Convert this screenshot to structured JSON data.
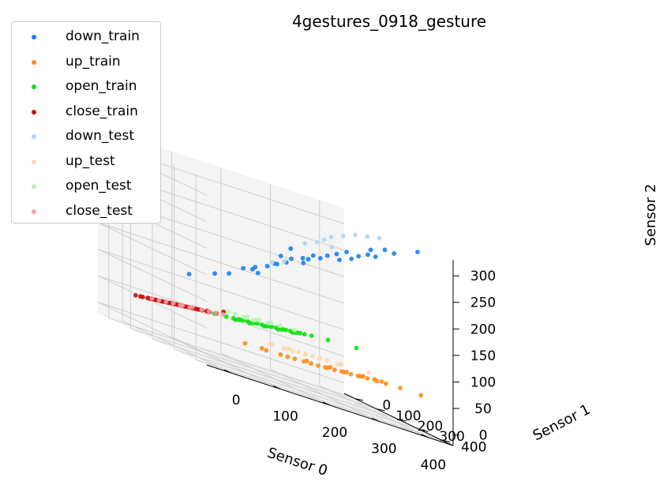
{
  "chart_data": {
    "type": "scatter3d",
    "title": "4gestures_0918_gesture",
    "xlabel": "Sensor 0",
    "ylabel": "Sensor 1",
    "zlabel": "Sensor 2",
    "xlim": [
      -50,
      450
    ],
    "ylim": [
      -50,
      450
    ],
    "zlim": [
      -20,
      330
    ],
    "xticks": [
      0,
      100,
      200,
      300,
      400
    ],
    "yticks": [
      0,
      100,
      200,
      300,
      400
    ],
    "zticks": [
      0,
      50,
      100,
      150,
      200,
      250,
      300
    ],
    "grid": true,
    "legend_position": "outside-top-left",
    "series": [
      {
        "name": "down_train",
        "color": "#1a80f0",
        "points": [
          [
            60,
            120,
            120
          ],
          [
            90,
            170,
            140
          ],
          [
            110,
            190,
            150
          ],
          [
            130,
            210,
            170
          ],
          [
            150,
            220,
            180
          ],
          [
            170,
            230,
            190
          ],
          [
            180,
            240,
            200
          ],
          [
            200,
            250,
            210
          ],
          [
            210,
            250,
            220
          ],
          [
            230,
            260,
            220
          ],
          [
            240,
            260,
            230
          ],
          [
            260,
            270,
            240
          ],
          [
            270,
            280,
            250
          ],
          [
            290,
            290,
            250
          ],
          [
            300,
            300,
            270
          ],
          [
            310,
            300,
            260
          ],
          [
            320,
            310,
            270
          ],
          [
            330,
            330,
            280
          ],
          [
            340,
            320,
            290
          ],
          [
            360,
            340,
            300
          ],
          [
            370,
            360,
            300
          ],
          [
            400,
            400,
            320
          ],
          [
            250,
            260,
            240
          ],
          [
            220,
            280,
            230
          ],
          [
            190,
            230,
            200
          ],
          [
            280,
            300,
            260
          ],
          [
            160,
            210,
            170
          ],
          [
            140,
            230,
            175
          ],
          [
            350,
            320,
            280
          ],
          [
            200,
            270,
            240
          ],
          [
            180,
            270,
            220
          ]
        ]
      },
      {
        "name": "up_train",
        "color": "#ff8c1a",
        "points": [
          [
            200,
            60,
            20
          ],
          [
            230,
            90,
            22
          ],
          [
            250,
            110,
            24
          ],
          [
            270,
            130,
            26
          ],
          [
            280,
            150,
            28
          ],
          [
            300,
            170,
            30
          ],
          [
            310,
            180,
            32
          ],
          [
            320,
            200,
            34
          ],
          [
            330,
            210,
            36
          ],
          [
            340,
            230,
            38
          ],
          [
            350,
            240,
            40
          ],
          [
            360,
            260,
            42
          ],
          [
            370,
            280,
            44
          ],
          [
            380,
            300,
            46
          ],
          [
            400,
            320,
            48
          ],
          [
            260,
            120,
            25
          ],
          [
            290,
            160,
            29
          ],
          [
            310,
            190,
            33
          ],
          [
            330,
            220,
            37
          ],
          [
            350,
            250,
            41
          ],
          [
            370,
            270,
            45
          ],
          [
            290,
            140,
            30
          ],
          [
            320,
            180,
            35
          ],
          [
            340,
            210,
            38
          ],
          [
            360,
            240,
            42
          ],
          [
            380,
            280,
            46
          ],
          [
            420,
            370,
            50
          ],
          [
            230,
            70,
            22
          ]
        ]
      },
      {
        "name": "open_train",
        "color": "#10e010",
        "points": [
          [
            120,
            100,
            60
          ],
          [
            140,
            110,
            62
          ],
          [
            150,
            120,
            64
          ],
          [
            160,
            130,
            66
          ],
          [
            170,
            140,
            68
          ],
          [
            180,
            150,
            70
          ],
          [
            190,
            160,
            72
          ],
          [
            200,
            170,
            74
          ],
          [
            210,
            180,
            76
          ],
          [
            220,
            190,
            78
          ],
          [
            230,
            200,
            80
          ],
          [
            240,
            210,
            82
          ],
          [
            250,
            220,
            84
          ],
          [
            260,
            230,
            86
          ],
          [
            280,
            260,
            90
          ],
          [
            160,
            120,
            65
          ],
          [
            180,
            140,
            68
          ],
          [
            200,
            160,
            72
          ],
          [
            220,
            180,
            76
          ],
          [
            240,
            200,
            80
          ],
          [
            150,
            130,
            63
          ],
          [
            170,
            150,
            67
          ],
          [
            190,
            170,
            71
          ],
          [
            210,
            190,
            75
          ],
          [
            230,
            210,
            79
          ],
          [
            170,
            120,
            66
          ],
          [
            190,
            140,
            70
          ],
          [
            210,
            160,
            74
          ],
          [
            230,
            180,
            78
          ],
          [
            250,
            200,
            82
          ],
          [
            320,
            300,
            95
          ]
        ]
      },
      {
        "name": "close_train",
        "color": "#c81010",
        "points": [
          [
            0,
            10,
            40
          ],
          [
            10,
            20,
            42
          ],
          [
            20,
            30,
            44
          ],
          [
            30,
            40,
            46
          ],
          [
            40,
            50,
            48
          ],
          [
            50,
            60,
            50
          ],
          [
            60,
            70,
            52
          ],
          [
            70,
            80,
            54
          ],
          [
            80,
            90,
            56
          ],
          [
            90,
            100,
            58
          ],
          [
            100,
            110,
            60
          ],
          [
            20,
            20,
            43
          ],
          [
            40,
            40,
            47
          ],
          [
            60,
            60,
            51
          ],
          [
            80,
            80,
            55
          ],
          [
            30,
            20,
            44
          ],
          [
            50,
            40,
            48
          ],
          [
            70,
            60,
            52
          ],
          [
            90,
            80,
            56
          ],
          [
            110,
            100,
            60
          ],
          [
            10,
            10,
            41
          ],
          [
            30,
            30,
            45
          ],
          [
            50,
            50,
            49
          ],
          [
            70,
            70,
            53
          ],
          [
            90,
            90,
            57
          ],
          [
            60,
            50,
            50
          ],
          [
            80,
            70,
            54
          ],
          [
            100,
            90,
            58
          ],
          [
            120,
            110,
            62
          ],
          [
            40,
            30,
            46
          ],
          [
            130,
            120,
            70
          ],
          [
            110,
            90,
            60
          ]
        ]
      },
      {
        "name": "down_test",
        "color": "#b3d5f7",
        "points": [
          [
            280,
            330,
            300
          ],
          [
            300,
            340,
            310
          ],
          [
            320,
            350,
            315
          ],
          [
            260,
            320,
            290
          ],
          [
            340,
            360,
            320
          ],
          [
            240,
            300,
            270
          ],
          [
            220,
            290,
            260
          ],
          [
            250,
            310,
            280
          ],
          [
            200,
            240,
            210
          ],
          [
            180,
            230,
            200
          ],
          [
            270,
            300,
            270
          ]
        ]
      },
      {
        "name": "up_test",
        "color": "#fed9b0",
        "points": [
          [
            220,
            140,
            40
          ],
          [
            240,
            160,
            42
          ],
          [
            260,
            170,
            44
          ],
          [
            280,
            190,
            46
          ],
          [
            300,
            210,
            48
          ],
          [
            320,
            230,
            50
          ],
          [
            250,
            150,
            43
          ],
          [
            270,
            180,
            45
          ],
          [
            290,
            200,
            47
          ],
          [
            230,
            170,
            41
          ],
          [
            210,
            150,
            39
          ],
          [
            310,
            250,
            52
          ],
          [
            260,
            200,
            45
          ],
          [
            280,
            220,
            47
          ],
          [
            240,
            190,
            43
          ],
          [
            350,
            290,
            56
          ],
          [
            300,
            260,
            50
          ]
        ]
      },
      {
        "name": "open_test",
        "color": "#b3f7b3",
        "points": [
          [
            140,
            150,
            75
          ],
          [
            160,
            160,
            78
          ],
          [
            180,
            170,
            80
          ],
          [
            200,
            180,
            82
          ],
          [
            170,
            180,
            79
          ],
          [
            150,
            170,
            76
          ],
          [
            190,
            190,
            81
          ],
          [
            210,
            200,
            84
          ],
          [
            130,
            140,
            73
          ],
          [
            160,
            190,
            77
          ],
          [
            230,
            220,
            86
          ]
        ]
      },
      {
        "name": "close_test",
        "color": "#f7a0a0",
        "points": [
          [
            40,
            60,
            50
          ],
          [
            60,
            80,
            54
          ],
          [
            80,
            90,
            58
          ],
          [
            100,
            120,
            62
          ],
          [
            70,
            100,
            56
          ],
          [
            50,
            70,
            52
          ],
          [
            90,
            110,
            60
          ],
          [
            110,
            130,
            64
          ],
          [
            30,
            50,
            48
          ],
          [
            120,
            140,
            66
          ],
          [
            60,
            90,
            55
          ],
          [
            20,
            40,
            46
          ]
        ]
      }
    ]
  }
}
